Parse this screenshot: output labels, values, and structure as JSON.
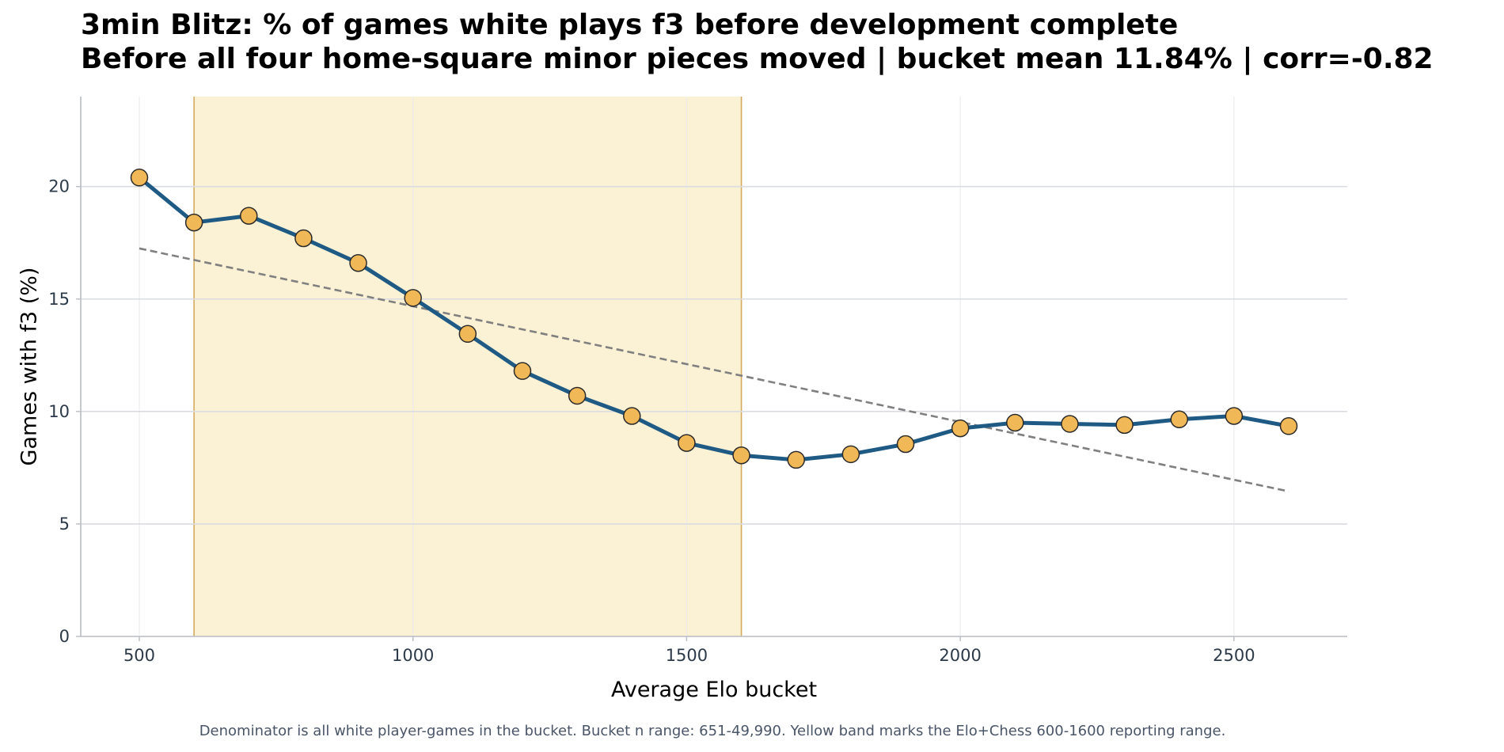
{
  "title_line1": "3min Blitz: % of games white plays f3 before development complete",
  "title_line2": "Before all four home-square minor pieces moved | bucket mean 11.84% | corr=-0.82",
  "footnote": "Denominator is all white player-games in the bucket. Bucket n range: 651-49,990. Yellow band marks the Elo+Chess 600-1600 reporting range.",
  "chart_data": {
    "type": "line",
    "title": "3min Blitz: % of games white plays f3 before development complete",
    "subtitle": "Before all four home-square minor pieces moved | bucket mean 11.84% | corr=-0.82",
    "xlabel": "Average Elo bucket",
    "ylabel": "Games with f3 (%)",
    "xlim": [
      393,
      2707
    ],
    "ylim": [
      0,
      24
    ],
    "xticks": [
      500,
      1000,
      1500,
      2000,
      2500
    ],
    "yticks": [
      0,
      5,
      10,
      15,
      20
    ],
    "grid": true,
    "series": [
      {
        "x": [
          500,
          600,
          700,
          800,
          900,
          1000,
          1100,
          1200,
          1300,
          1400,
          1500,
          1600,
          1700,
          1800,
          1900,
          2000,
          2100,
          2200,
          2300,
          2400,
          2500,
          2600
        ],
        "values": [
          20.4,
          18.4,
          18.7,
          17.7,
          16.6,
          15.05,
          13.45,
          11.8,
          10.7,
          9.8,
          8.6,
          8.05,
          7.85,
          8.1,
          8.55,
          9.25,
          9.5,
          9.45,
          9.4,
          9.65,
          9.8,
          9.35
        ],
        "line_color": "#1f5a85",
        "marker_color": "#f0b856"
      }
    ],
    "trend_line": {
      "x": [
        500,
        2600
      ],
      "values": [
        17.25,
        6.45
      ],
      "color": "#808080",
      "style": "dashed"
    },
    "band": {
      "x_range": [
        600,
        1600
      ],
      "fill": "#fbf1d4",
      "edge": "#d4aa5f"
    },
    "colors": {
      "axis": "#b8bcc4",
      "grid": "#d9dce1",
      "tick_text": "#2d3a4a"
    }
  }
}
